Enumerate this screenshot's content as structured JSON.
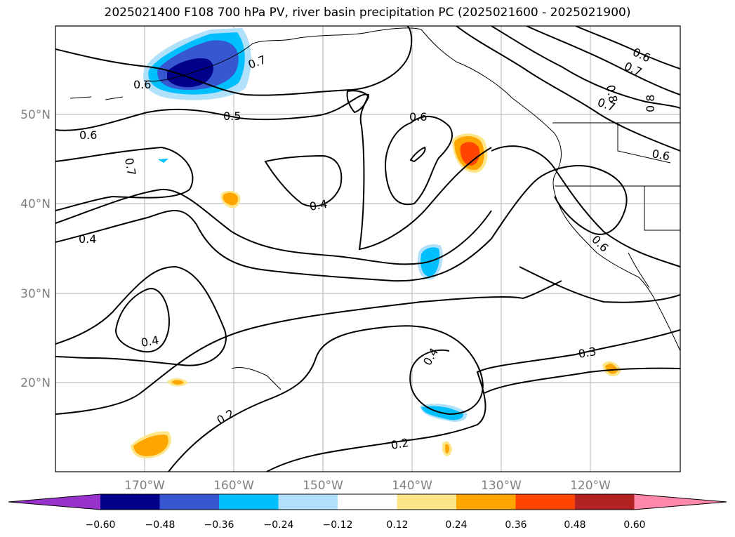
{
  "title": "2025021400 F108 700 hPa PV, river basin precipitation PC (2025021600 - 2025021900)",
  "map": {
    "lat_labels": [
      "50°N",
      "40°N",
      "30°N",
      "20°N"
    ],
    "lon_labels": [
      "170°W",
      "160°W",
      "150°W",
      "140°W",
      "130°W",
      "120°W"
    ],
    "lon_range_deg": [
      -180,
      -110
    ],
    "lat_range_deg": [
      10,
      60
    ],
    "gridlines": true,
    "contour_labels": [
      "0.6",
      "0.7",
      "0.5",
      "0.6",
      "0.7",
      "0.4",
      "0.4",
      "0.6",
      "0.7",
      "0.8",
      "0.6",
      "0.7",
      "0.8",
      "0.6",
      "0.6",
      "0.4",
      "0.4",
      "0.3",
      "0.2",
      "0.2"
    ]
  },
  "colorbar": {
    "ticks": [
      "−0.60",
      "−0.48",
      "−0.36",
      "−0.24",
      "−0.12",
      "0.12",
      "0.24",
      "0.36",
      "0.48",
      "0.60"
    ],
    "colors": [
      "#9932cc",
      "#00008b",
      "#3657cf",
      "#00bfff",
      "#b0e0fa",
      "#ffffff",
      "#fde68a",
      "#ffa500",
      "#ff4500",
      "#b22222",
      "#ff88aa"
    ],
    "extend": "both"
  }
}
